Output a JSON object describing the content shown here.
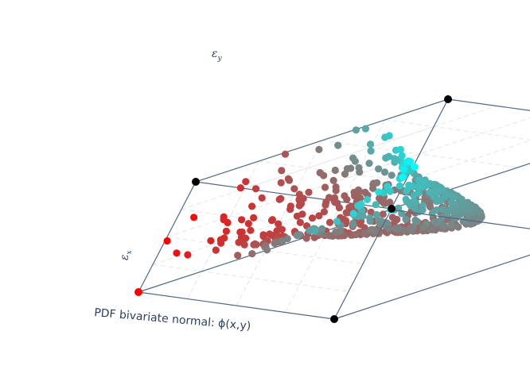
{
  "chart_data": {
    "type": "scatter3d",
    "title": "",
    "xlabel": "εx",
    "xlabel_main": "ε",
    "xlabel_sub": "x",
    "ylabel": "εy",
    "ylabel_main": "ε",
    "ylabel_sub": "y",
    "zlabel": "PDF bivariate normal: ϕ(x,y)",
    "xlim": [
      -3,
      3
    ],
    "ylim": [
      -3,
      3
    ],
    "zlim": [
      0,
      0.17
    ],
    "grid": true,
    "colorscale": [
      "#ff0000",
      "#00ffff"
    ],
    "peak": {
      "x": 0,
      "y": 0,
      "z": 0.159
    },
    "distribution": "bivariate normal, mean (0,0), unit variance",
    "n_points": 600
  }
}
